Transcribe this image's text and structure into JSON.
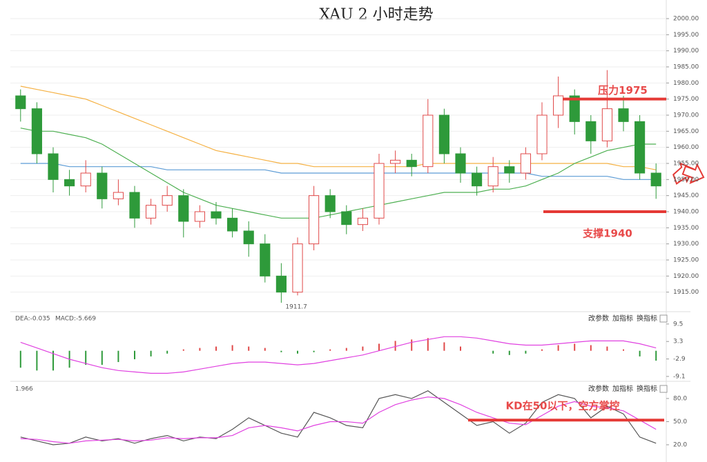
{
  "chart_data": [
    {
      "type": "candlestick",
      "title": "XAU 2 小时走势",
      "ylim": [
        1910,
        2003
      ],
      "yticks": [
        {
          "value": 1915,
          "label": "1915.00"
        },
        {
          "value": 1920,
          "label": "1920.00"
        },
        {
          "value": 1925,
          "label": "1925.00"
        },
        {
          "value": 1930,
          "label": "1930.00"
        },
        {
          "value": 1935,
          "label": "1935.00"
        },
        {
          "value": 1940,
          "label": "1940.00"
        },
        {
          "value": 1945,
          "label": "1945.00"
        },
        {
          "value": 1950,
          "label": "1950.00"
        },
        {
          "value": 1955,
          "label": "1955.00"
        },
        {
          "value": 1960,
          "label": "1960.00"
        },
        {
          "value": 1965,
          "label": "1965.00"
        },
        {
          "value": 1970,
          "label": "1970.00"
        },
        {
          "value": 1975,
          "label": "1975.00"
        },
        {
          "value": 1980,
          "label": "1980.00"
        },
        {
          "value": 1985,
          "label": "1985.00"
        },
        {
          "value": 1990,
          "label": "1990.00"
        },
        {
          "value": 1995,
          "label": "1995.00"
        },
        {
          "value": 2000,
          "label": "2000.00"
        }
      ],
      "grid": true,
      "up_color": "#e04848",
      "down_color": "#2e9a3a",
      "ohlc": [
        [
          1976,
          1978,
          1968,
          1972
        ],
        [
          1972,
          1974,
          1955,
          1958
        ],
        [
          1958,
          1960,
          1946,
          1950
        ],
        [
          1950,
          1953,
          1945,
          1948
        ],
        [
          1948,
          1956,
          1946,
          1952
        ],
        [
          1952,
          1954,
          1941,
          1944
        ],
        [
          1944,
          1950,
          1942,
          1946
        ],
        [
          1946,
          1948,
          1935,
          1938
        ],
        [
          1938,
          1944,
          1936,
          1942
        ],
        [
          1942,
          1948,
          1940,
          1945
        ],
        [
          1945,
          1947,
          1932,
          1937
        ],
        [
          1937,
          1942,
          1935,
          1940
        ],
        [
          1940,
          1943,
          1936,
          1938
        ],
        [
          1938,
          1941,
          1932,
          1934
        ],
        [
          1934,
          1937,
          1926,
          1930
        ],
        [
          1930,
          1933,
          1918,
          1920
        ],
        [
          1920,
          1924,
          1911.7,
          1915
        ],
        [
          1915,
          1932,
          1914,
          1930
        ],
        [
          1930,
          1948,
          1928,
          1945
        ],
        [
          1945,
          1947,
          1938,
          1940
        ],
        [
          1940,
          1942,
          1933,
          1936
        ],
        [
          1936,
          1941,
          1934,
          1938
        ],
        [
          1938,
          1958,
          1936,
          1955
        ],
        [
          1955,
          1959,
          1952,
          1956
        ],
        [
          1956,
          1958,
          1951,
          1954
        ],
        [
          1954,
          1975,
          1952,
          1970
        ],
        [
          1970,
          1972,
          1955,
          1958
        ],
        [
          1958,
          1960,
          1949,
          1952
        ],
        [
          1952,
          1954,
          1945,
          1948
        ],
        [
          1948,
          1957,
          1946,
          1954
        ],
        [
          1954,
          1956,
          1949,
          1952
        ],
        [
          1952,
          1960,
          1950,
          1958
        ],
        [
          1958,
          1974,
          1956,
          1970
        ],
        [
          1970,
          1982,
          1966,
          1976
        ],
        [
          1976,
          1978,
          1964,
          1968
        ],
        [
          1968,
          1970,
          1958,
          1962
        ],
        [
          1962,
          1984,
          1960,
          1972
        ],
        [
          1972,
          1976,
          1965,
          1968
        ],
        [
          1968,
          1970,
          1950,
          1952
        ],
        [
          1952,
          1955,
          1944,
          1948
        ]
      ],
      "low_label": {
        "index": 16,
        "value": 1911.7
      },
      "series": [
        {
          "color": "#f5b041",
          "values": [
            1979,
            1978,
            1977,
            1976,
            1975,
            1973,
            1971,
            1969,
            1967,
            1965,
            1963,
            1961,
            1959,
            1958,
            1957,
            1956,
            1955,
            1955,
            1954,
            1954,
            1954,
            1954,
            1954,
            1954,
            1954,
            1955,
            1955,
            1955,
            1955,
            1955,
            1955,
            1955,
            1955,
            1955,
            1955,
            1955,
            1955,
            1954,
            1954,
            1953
          ]
        },
        {
          "color": "#5b9bd5",
          "values": [
            1955,
            1955,
            1955,
            1954,
            1954,
            1954,
            1954,
            1954,
            1954,
            1953,
            1953,
            1953,
            1953,
            1953,
            1953,
            1953,
            1952,
            1952,
            1952,
            1952,
            1952,
            1952,
            1952,
            1952,
            1952,
            1952,
            1952,
            1952,
            1952,
            1952,
            1952,
            1952,
            1951,
            1951,
            1951,
            1951,
            1951,
            1950,
            1950,
            1950
          ]
        },
        {
          "color": "#4caf50",
          "values": [
            1966,
            1965,
            1965,
            1964,
            1963,
            1961,
            1958,
            1955,
            1952,
            1949,
            1946,
            1944,
            1942,
            1941,
            1940,
            1939,
            1938,
            1938,
            1938,
            1939,
            1940,
            1941,
            1942,
            1943,
            1944,
            1945,
            1946,
            1946,
            1946,
            1947,
            1947,
            1948,
            1950,
            1952,
            1955,
            1957,
            1959,
            1960,
            1961,
            1961
          ]
        }
      ],
      "levels": [
        {
          "label": "压力1975",
          "value": 1975
        },
        {
          "label": "支撑1940",
          "value": 1940
        }
      ]
    },
    {
      "type": "macd",
      "legend": [
        "DEA:-0.035",
        "MACD:-5.669"
      ],
      "buttons": [
        "改参数",
        "加指标",
        "换指标"
      ],
      "ylim": [
        -10.1,
        12.4
      ],
      "yticks": [
        9.5,
        3.3,
        -2.9,
        -9.1
      ],
      "histogram": [
        -6,
        -7,
        -7,
        -6,
        -5,
        -5,
        -4,
        -3,
        -2,
        -1,
        0.5,
        1,
        1.5,
        2,
        1.5,
        1,
        -0.5,
        -1,
        -0.5,
        0.5,
        1,
        1.5,
        2.5,
        3.5,
        4,
        4.5,
        3,
        1.5,
        0,
        -1,
        -1.5,
        -1,
        0.5,
        2,
        2.5,
        2,
        1.5,
        0.5,
        -2,
        -3.5
      ],
      "series": [
        {
          "color": "#e040e0",
          "values": [
            3,
            1,
            -1,
            -3,
            -4.5,
            -6,
            -7,
            -7.5,
            -8,
            -8,
            -7.5,
            -6.5,
            -5.5,
            -4.5,
            -4,
            -4,
            -4.5,
            -5,
            -4.5,
            -3.5,
            -2.5,
            -1.5,
            0,
            1.5,
            3,
            4,
            5,
            5,
            4.5,
            3.5,
            2.5,
            2,
            2,
            2.5,
            3,
            3.5,
            3.5,
            3.5,
            2.5,
            1
          ]
        }
      ]
    },
    {
      "type": "kd",
      "legend": [
        "1.966"
      ],
      "buttons": [
        "改参数",
        "加指标",
        "换指标"
      ],
      "ylim": [
        6.6,
        96
      ],
      "yticks": [
        {
          "value": 80,
          "label": "80.0"
        },
        {
          "value": 50,
          "label": "50.0"
        },
        {
          "value": 20,
          "label": "20.0"
        }
      ],
      "series": [
        {
          "color": "#555555",
          "values": [
            30,
            25,
            20,
            22,
            30,
            25,
            28,
            22,
            28,
            32,
            25,
            30,
            28,
            40,
            55,
            45,
            35,
            30,
            62,
            55,
            45,
            42,
            80,
            85,
            80,
            90,
            75,
            60,
            45,
            50,
            35,
            48,
            75,
            85,
            80,
            55,
            70,
            60,
            30,
            22
          ]
        },
        {
          "color": "#e040e0",
          "values": [
            28,
            27,
            24,
            22,
            25,
            26,
            27,
            25,
            26,
            29,
            28,
            29,
            29,
            32,
            42,
            45,
            42,
            38,
            45,
            50,
            50,
            48,
            62,
            72,
            78,
            82,
            80,
            72,
            62,
            55,
            48,
            46,
            58,
            70,
            76,
            70,
            68,
            64,
            52,
            40
          ]
        }
      ],
      "levels": [
        {
          "label": "KD在50以下，空方掌控",
          "value": 52
        }
      ]
    }
  ]
}
